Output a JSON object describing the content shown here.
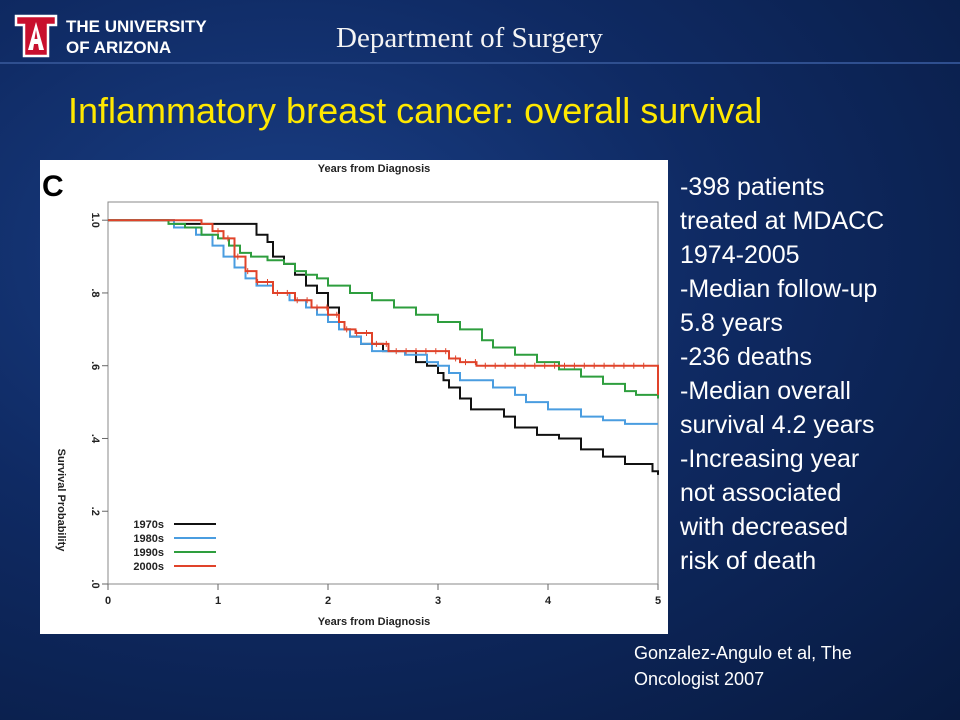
{
  "header": {
    "university_line1": "THE UNIVERSITY",
    "university_line2": "OF ARIZONA",
    "department": "Department of Surgery"
  },
  "slide": {
    "title": "Inflammatory breast cancer: overall survival",
    "bullets": [
      "-398 patients",
      "treated at MDACC",
      "1974-2005",
      "-Median follow-up",
      "5.8 years",
      "-236 deaths",
      "-Median overall",
      "survival 4.2 years",
      "-Increasing year",
      "not associated",
      "with decreased",
      "risk of death"
    ],
    "citation_line1": "Gonzalez-Angulo et al, The",
    "citation_line2": "Oncologist 2007"
  },
  "chart_data": {
    "type": "line",
    "panel_label": "C",
    "top_label": "Years from Diagnosis",
    "xlabel": "Years from Diagnosis",
    "ylabel": "Survival Probability",
    "xlim": [
      0,
      5
    ],
    "ylim": [
      0,
      1.05
    ],
    "x_ticks": [
      "0",
      "1",
      "2",
      "3",
      "4",
      "5"
    ],
    "y_ticks": [
      {
        "v": 0.0,
        "label": ".0"
      },
      {
        "v": 0.2,
        "label": ".2"
      },
      {
        "v": 0.4,
        "label": ".4"
      },
      {
        "v": 0.6,
        "label": ".6"
      },
      {
        "v": 0.8,
        "label": ".8"
      },
      {
        "v": 1.0,
        "label": "1.0"
      }
    ],
    "legend_position": "bottom-left",
    "step": true,
    "series": [
      {
        "name": "1970s",
        "color": "#111111",
        "points": [
          [
            0,
            1.0
          ],
          [
            0.5,
            1.0
          ],
          [
            0.6,
            0.99
          ],
          [
            1.0,
            0.99
          ],
          [
            1.3,
            0.99
          ],
          [
            1.35,
            0.96
          ],
          [
            1.45,
            0.94
          ],
          [
            1.5,
            0.9
          ],
          [
            1.6,
            0.88
          ],
          [
            1.7,
            0.85
          ],
          [
            1.8,
            0.82
          ],
          [
            1.9,
            0.8
          ],
          [
            2.0,
            0.76
          ],
          [
            2.1,
            0.72
          ],
          [
            2.15,
            0.7
          ],
          [
            2.2,
            0.68
          ],
          [
            2.3,
            0.66
          ],
          [
            2.5,
            0.64
          ],
          [
            2.7,
            0.64
          ],
          [
            2.8,
            0.61
          ],
          [
            2.9,
            0.6
          ],
          [
            3.0,
            0.58
          ],
          [
            3.05,
            0.56
          ],
          [
            3.1,
            0.54
          ],
          [
            3.2,
            0.51
          ],
          [
            3.3,
            0.48
          ],
          [
            3.6,
            0.46
          ],
          [
            3.7,
            0.43
          ],
          [
            3.9,
            0.41
          ],
          [
            4.1,
            0.4
          ],
          [
            4.3,
            0.37
          ],
          [
            4.5,
            0.35
          ],
          [
            4.7,
            0.33
          ],
          [
            4.95,
            0.31
          ],
          [
            5.0,
            0.3
          ]
        ]
      },
      {
        "name": "1980s",
        "color": "#4a9de0",
        "points": [
          [
            0,
            1.0
          ],
          [
            0.4,
            1.0
          ],
          [
            0.6,
            0.98
          ],
          [
            0.8,
            0.96
          ],
          [
            0.95,
            0.93
          ],
          [
            1.05,
            0.9
          ],
          [
            1.15,
            0.87
          ],
          [
            1.25,
            0.84
          ],
          [
            1.35,
            0.82
          ],
          [
            1.5,
            0.8
          ],
          [
            1.65,
            0.78
          ],
          [
            1.8,
            0.76
          ],
          [
            1.9,
            0.74
          ],
          [
            2.0,
            0.72
          ],
          [
            2.1,
            0.7
          ],
          [
            2.2,
            0.68
          ],
          [
            2.3,
            0.66
          ],
          [
            2.4,
            0.64
          ],
          [
            2.5,
            0.64
          ],
          [
            2.7,
            0.63
          ],
          [
            2.9,
            0.61
          ],
          [
            3.0,
            0.6
          ],
          [
            3.1,
            0.58
          ],
          [
            3.2,
            0.56
          ],
          [
            3.5,
            0.54
          ],
          [
            3.7,
            0.52
          ],
          [
            3.8,
            0.5
          ],
          [
            4.0,
            0.48
          ],
          [
            4.3,
            0.46
          ],
          [
            4.5,
            0.45
          ],
          [
            4.7,
            0.44
          ],
          [
            5.0,
            0.44
          ]
        ]
      },
      {
        "name": "1990s",
        "color": "#2e9e3e",
        "points": [
          [
            0,
            1.0
          ],
          [
            0.4,
            1.0
          ],
          [
            0.55,
            0.99
          ],
          [
            0.7,
            0.98
          ],
          [
            0.85,
            0.96
          ],
          [
            1.0,
            0.95
          ],
          [
            1.1,
            0.93
          ],
          [
            1.2,
            0.91
          ],
          [
            1.3,
            0.9
          ],
          [
            1.45,
            0.89
          ],
          [
            1.6,
            0.88
          ],
          [
            1.7,
            0.86
          ],
          [
            1.8,
            0.85
          ],
          [
            1.9,
            0.84
          ],
          [
            2.0,
            0.82
          ],
          [
            2.2,
            0.8
          ],
          [
            2.4,
            0.78
          ],
          [
            2.6,
            0.76
          ],
          [
            2.8,
            0.74
          ],
          [
            3.0,
            0.72
          ],
          [
            3.2,
            0.7
          ],
          [
            3.4,
            0.67
          ],
          [
            3.5,
            0.65
          ],
          [
            3.7,
            0.63
          ],
          [
            3.9,
            0.61
          ],
          [
            4.1,
            0.59
          ],
          [
            4.3,
            0.57
          ],
          [
            4.5,
            0.55
          ],
          [
            4.7,
            0.53
          ],
          [
            4.8,
            0.52
          ],
          [
            5.0,
            0.51
          ]
        ]
      },
      {
        "name": "2000s",
        "color": "#e0432a",
        "points": [
          [
            0,
            1.0
          ],
          [
            0.7,
            1.0
          ],
          [
            0.85,
            0.99
          ],
          [
            0.95,
            0.97
          ],
          [
            1.05,
            0.95
          ],
          [
            1.15,
            0.9
          ],
          [
            1.25,
            0.86
          ],
          [
            1.35,
            0.83
          ],
          [
            1.5,
            0.8
          ],
          [
            1.7,
            0.78
          ],
          [
            1.85,
            0.76
          ],
          [
            2.0,
            0.74
          ],
          [
            2.1,
            0.72
          ],
          [
            2.15,
            0.7
          ],
          [
            2.25,
            0.69
          ],
          [
            2.4,
            0.66
          ],
          [
            2.55,
            0.64
          ],
          [
            2.8,
            0.64
          ],
          [
            3.0,
            0.64
          ],
          [
            3.1,
            0.62
          ],
          [
            3.2,
            0.61
          ],
          [
            3.35,
            0.6
          ],
          [
            3.6,
            0.6
          ],
          [
            4.0,
            0.6
          ],
          [
            4.5,
            0.6
          ],
          [
            4.95,
            0.6
          ],
          [
            5.0,
            0.52
          ]
        ]
      }
    ]
  }
}
